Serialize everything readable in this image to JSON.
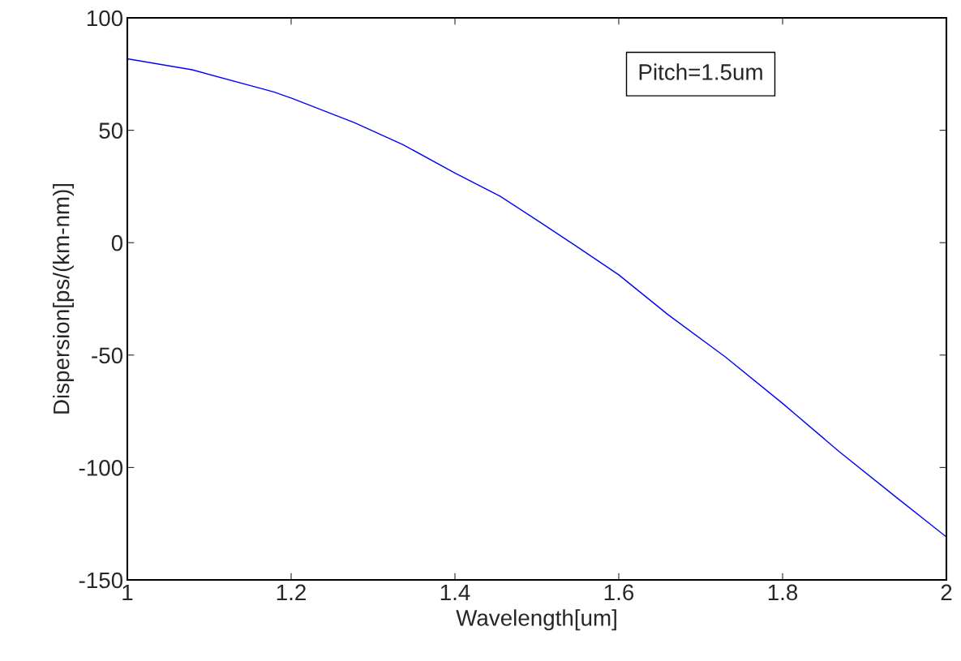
{
  "chart_data": {
    "type": "line",
    "xlabel": "Wavelength[um]",
    "ylabel": "Dispersion[ps/(km-nm)]",
    "x": [
      1.0,
      1.079,
      1.178,
      1.2,
      1.277,
      1.336,
      1.4,
      1.455,
      1.506,
      1.549,
      1.6,
      1.66,
      1.73,
      1.8,
      1.869,
      1.94,
      2.0
    ],
    "series": [
      {
        "color": "#0000ff",
        "values": [
          81.8,
          76.9,
          67.1,
          64.3,
          53.4,
          43.7,
          31.0,
          20.7,
          8.6,
          -1.8,
          -14.3,
          -32,
          -50.8,
          -71.5,
          -92.9,
          -113.6,
          -130.9
        ]
      }
    ],
    "annotations": [
      "Pitch=1.5um"
    ],
    "xlim": [
      1,
      2
    ],
    "ylim": [
      -150,
      100
    ],
    "xticks": [
      1,
      1.2,
      1.4,
      1.6,
      1.8,
      2
    ],
    "yticks": [
      100,
      50,
      0,
      -50,
      -100,
      -150
    ],
    "grid": false,
    "legend": false,
    "line_style": "solid",
    "marker": "none"
  }
}
